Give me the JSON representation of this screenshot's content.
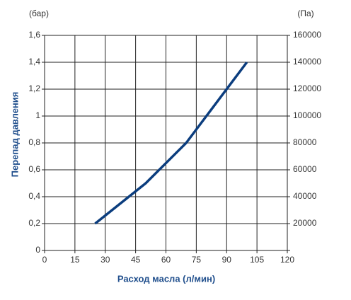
{
  "chart_data": {
    "type": "line",
    "y_unit_label": "(бар)",
    "y2_unit_label": "(Па)",
    "ylabel": "Перепад давления",
    "xlabel": "Расход масла (л/мин)",
    "x": [
      25,
      50,
      70,
      100
    ],
    "values": [
      0.2,
      0.5,
      0.8,
      1.4
    ],
    "color": "#0b3d7e",
    "xlim": [
      0,
      120
    ],
    "xticks": [
      0,
      15,
      30,
      45,
      60,
      75,
      90,
      105,
      120
    ],
    "ylim": [
      0,
      1.6
    ],
    "yticks": [
      0,
      {
        "value": 0.2,
        "label": "0,2"
      },
      {
        "value": 0.4,
        "label": "0,4"
      },
      {
        "value": 0.6,
        "label": "0,6"
      },
      {
        "value": 0.8,
        "label": "0,8"
      },
      1,
      {
        "value": 1.2,
        "label": "1,2"
      },
      {
        "value": 1.4,
        "label": "1,4"
      },
      {
        "value": 1.6,
        "label": "1,6"
      }
    ],
    "y2lim": [
      0,
      160000
    ],
    "y2ticks": [
      20000,
      40000,
      60000,
      80000,
      100000,
      120000,
      140000,
      160000
    ],
    "grid": true
  }
}
